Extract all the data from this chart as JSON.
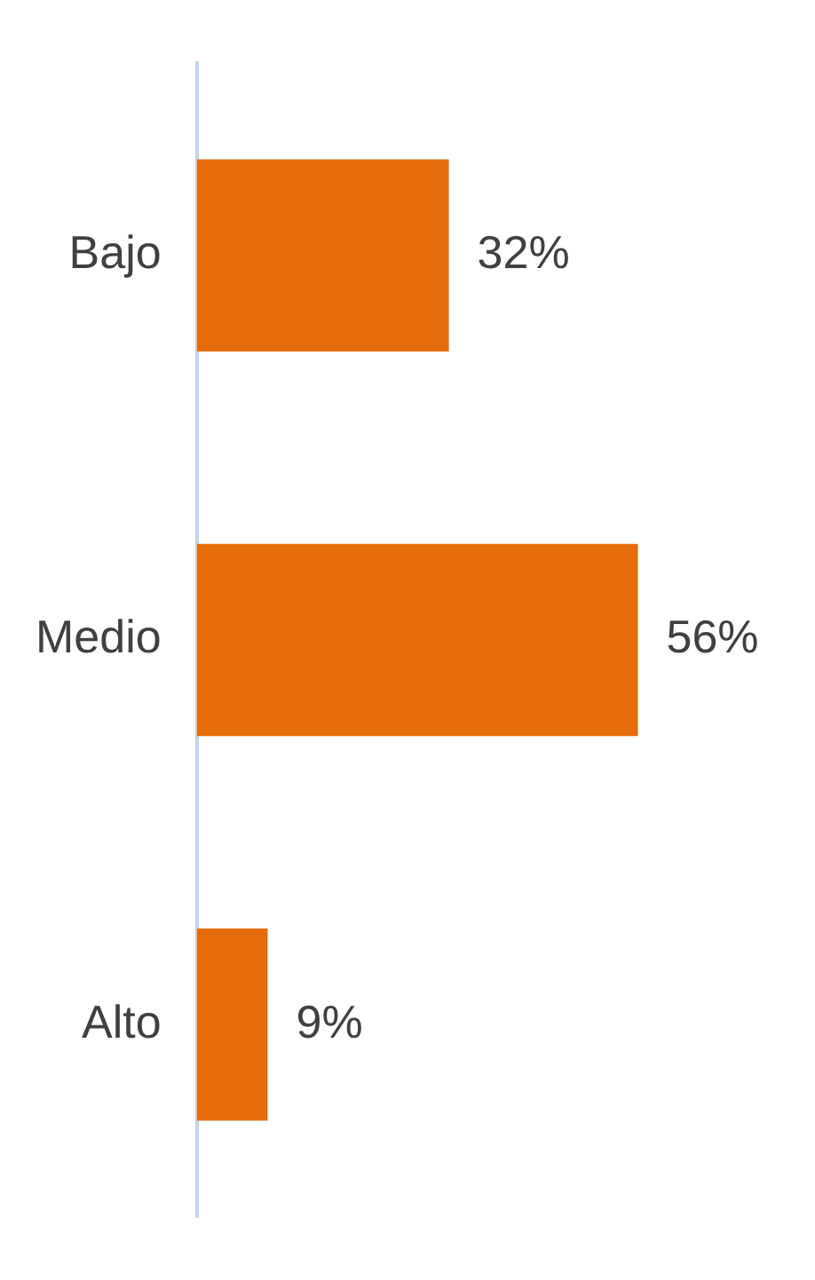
{
  "chart_data": {
    "type": "bar",
    "orientation": "horizontal",
    "categories": [
      "Bajo",
      "Medio",
      "Alto"
    ],
    "values": [
      32,
      56,
      9
    ],
    "value_labels": [
      "32%",
      "56%",
      "9%"
    ],
    "color": "#e46c0a",
    "grid": false,
    "legend": false,
    "tick_labels": "y"
  }
}
